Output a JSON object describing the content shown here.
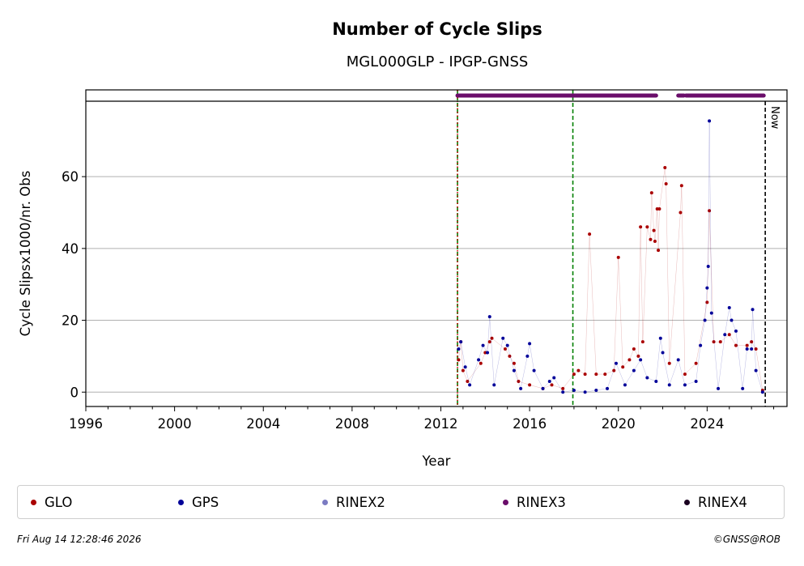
{
  "chart_data": {
    "type": "scatter",
    "title": "Number of Cycle Slips",
    "subtitle": "MGL000GLP - IPGP-GNSS",
    "xlabel": "Year",
    "ylabel": "Cycle Slipsx1000/nr. Obs",
    "xlim": [
      1996,
      2027.6
    ],
    "ylim": [
      -4,
      81
    ],
    "x_ticks": [
      "1996",
      "2000",
      "2004",
      "2008",
      "2012",
      "2016",
      "2020",
      "2024"
    ],
    "x_tick_values": [
      1996,
      2000,
      2004,
      2008,
      2012,
      2016,
      2020,
      2024
    ],
    "y_ticks": [
      "0",
      "20",
      "40",
      "60"
    ],
    "y_tick_values": [
      0,
      20,
      40,
      60
    ],
    "grid": "horizontal",
    "now_label": "Now",
    "now_year": 2026.62,
    "vertical_lines": [
      {
        "year": 2012.75,
        "color": "#008000",
        "style": "dashed"
      },
      {
        "year": 2012.75,
        "color": "#cc0000",
        "style": "dotted"
      },
      {
        "year": 2017.95,
        "color": "#008000",
        "style": "dashed"
      }
    ],
    "rinex_availability": [
      {
        "name": "RINEX3",
        "color": "#6a0d6a",
        "from": 2012.75,
        "to": 2021.7
      },
      {
        "name": "RINEX3",
        "color": "#6a0d6a",
        "from": 2022.7,
        "to": 2022.95
      },
      {
        "name": "RINEX3",
        "color": "#6a0d6a",
        "from": 2023.05,
        "to": 2026.55
      }
    ],
    "series": [
      {
        "name": "GLO",
        "color": "#aa0000",
        "points": [
          [
            2012.8,
            9
          ],
          [
            2012.9,
            14
          ],
          [
            2013.0,
            6
          ],
          [
            2013.2,
            3
          ],
          [
            2013.8,
            8
          ],
          [
            2014.0,
            11
          ],
          [
            2014.2,
            14
          ],
          [
            2014.3,
            15
          ],
          [
            2014.9,
            12
          ],
          [
            2015.1,
            10
          ],
          [
            2015.3,
            8
          ],
          [
            2015.5,
            3
          ],
          [
            2016.0,
            2
          ],
          [
            2016.6,
            1
          ],
          [
            2017.0,
            2
          ],
          [
            2017.5,
            1
          ],
          [
            2018.0,
            5
          ],
          [
            2018.2,
            6
          ],
          [
            2018.5,
            5
          ],
          [
            2018.7,
            44
          ],
          [
            2019.0,
            5
          ],
          [
            2019.4,
            5
          ],
          [
            2019.8,
            6
          ],
          [
            2020.0,
            37.5
          ],
          [
            2020.2,
            7
          ],
          [
            2020.5,
            9
          ],
          [
            2020.7,
            12
          ],
          [
            2020.9,
            10
          ],
          [
            2021.0,
            46
          ],
          [
            2021.1,
            14
          ],
          [
            2021.3,
            46
          ],
          [
            2021.45,
            42.5
          ],
          [
            2021.5,
            55.5
          ],
          [
            2021.6,
            45
          ],
          [
            2021.65,
            42
          ],
          [
            2021.75,
            51
          ],
          [
            2021.8,
            39.5
          ],
          [
            2021.85,
            51
          ],
          [
            2022.1,
            62.5
          ],
          [
            2022.15,
            58
          ],
          [
            2022.3,
            8
          ],
          [
            2022.8,
            50
          ],
          [
            2022.85,
            57.5
          ],
          [
            2023.0,
            5
          ],
          [
            2023.5,
            8
          ],
          [
            2024.0,
            25
          ],
          [
            2024.1,
            50.5
          ],
          [
            2024.3,
            14
          ],
          [
            2024.6,
            14
          ],
          [
            2025.0,
            16
          ],
          [
            2025.3,
            13
          ],
          [
            2025.8,
            13
          ],
          [
            2026.0,
            14
          ],
          [
            2026.2,
            12
          ],
          [
            2026.5,
            0.5
          ]
        ]
      },
      {
        "name": "GPS",
        "color": "#000099",
        "points": [
          [
            2012.8,
            12
          ],
          [
            2012.9,
            14
          ],
          [
            2013.1,
            7
          ],
          [
            2013.3,
            2
          ],
          [
            2013.7,
            9
          ],
          [
            2013.9,
            13
          ],
          [
            2014.1,
            11
          ],
          [
            2014.2,
            21
          ],
          [
            2014.4,
            2
          ],
          [
            2014.8,
            15
          ],
          [
            2015.0,
            13
          ],
          [
            2015.3,
            6
          ],
          [
            2015.6,
            1
          ],
          [
            2015.9,
            10
          ],
          [
            2016.0,
            13.5
          ],
          [
            2016.2,
            6
          ],
          [
            2016.6,
            1
          ],
          [
            2016.9,
            3
          ],
          [
            2017.1,
            4
          ],
          [
            2017.5,
            0
          ],
          [
            2018.0,
            0.5
          ],
          [
            2018.5,
            0
          ],
          [
            2019.0,
            0.5
          ],
          [
            2019.5,
            1
          ],
          [
            2019.9,
            8
          ],
          [
            2020.3,
            2
          ],
          [
            2020.7,
            6
          ],
          [
            2021.0,
            9
          ],
          [
            2021.3,
            4
          ],
          [
            2021.7,
            3
          ],
          [
            2021.9,
            15
          ],
          [
            2022.0,
            11
          ],
          [
            2022.3,
            2
          ],
          [
            2022.7,
            9
          ],
          [
            2023.0,
            2
          ],
          [
            2023.5,
            3
          ],
          [
            2023.7,
            13
          ],
          [
            2023.9,
            20
          ],
          [
            2024.0,
            29
          ],
          [
            2024.05,
            35
          ],
          [
            2024.1,
            75.5
          ],
          [
            2024.2,
            22
          ],
          [
            2024.5,
            1
          ],
          [
            2024.8,
            16
          ],
          [
            2025.0,
            23.5
          ],
          [
            2025.1,
            20
          ],
          [
            2025.3,
            17
          ],
          [
            2025.6,
            1
          ],
          [
            2025.8,
            12
          ],
          [
            2026.0,
            12
          ],
          [
            2026.05,
            23
          ],
          [
            2026.2,
            6
          ],
          [
            2026.5,
            0
          ]
        ]
      }
    ]
  },
  "legend": [
    {
      "label": "GLO",
      "color": "#aa0000"
    },
    {
      "label": "GPS",
      "color": "#000099"
    },
    {
      "label": "RINEX2",
      "color": "#7b7bc2"
    },
    {
      "label": "RINEX3",
      "color": "#6a0d6a"
    },
    {
      "label": "RINEX4",
      "color": "#1a0020"
    }
  ],
  "footer": {
    "timestamp": "Fri Aug 14 12:28:46 2026",
    "credit": "©GNSS@ROB"
  }
}
